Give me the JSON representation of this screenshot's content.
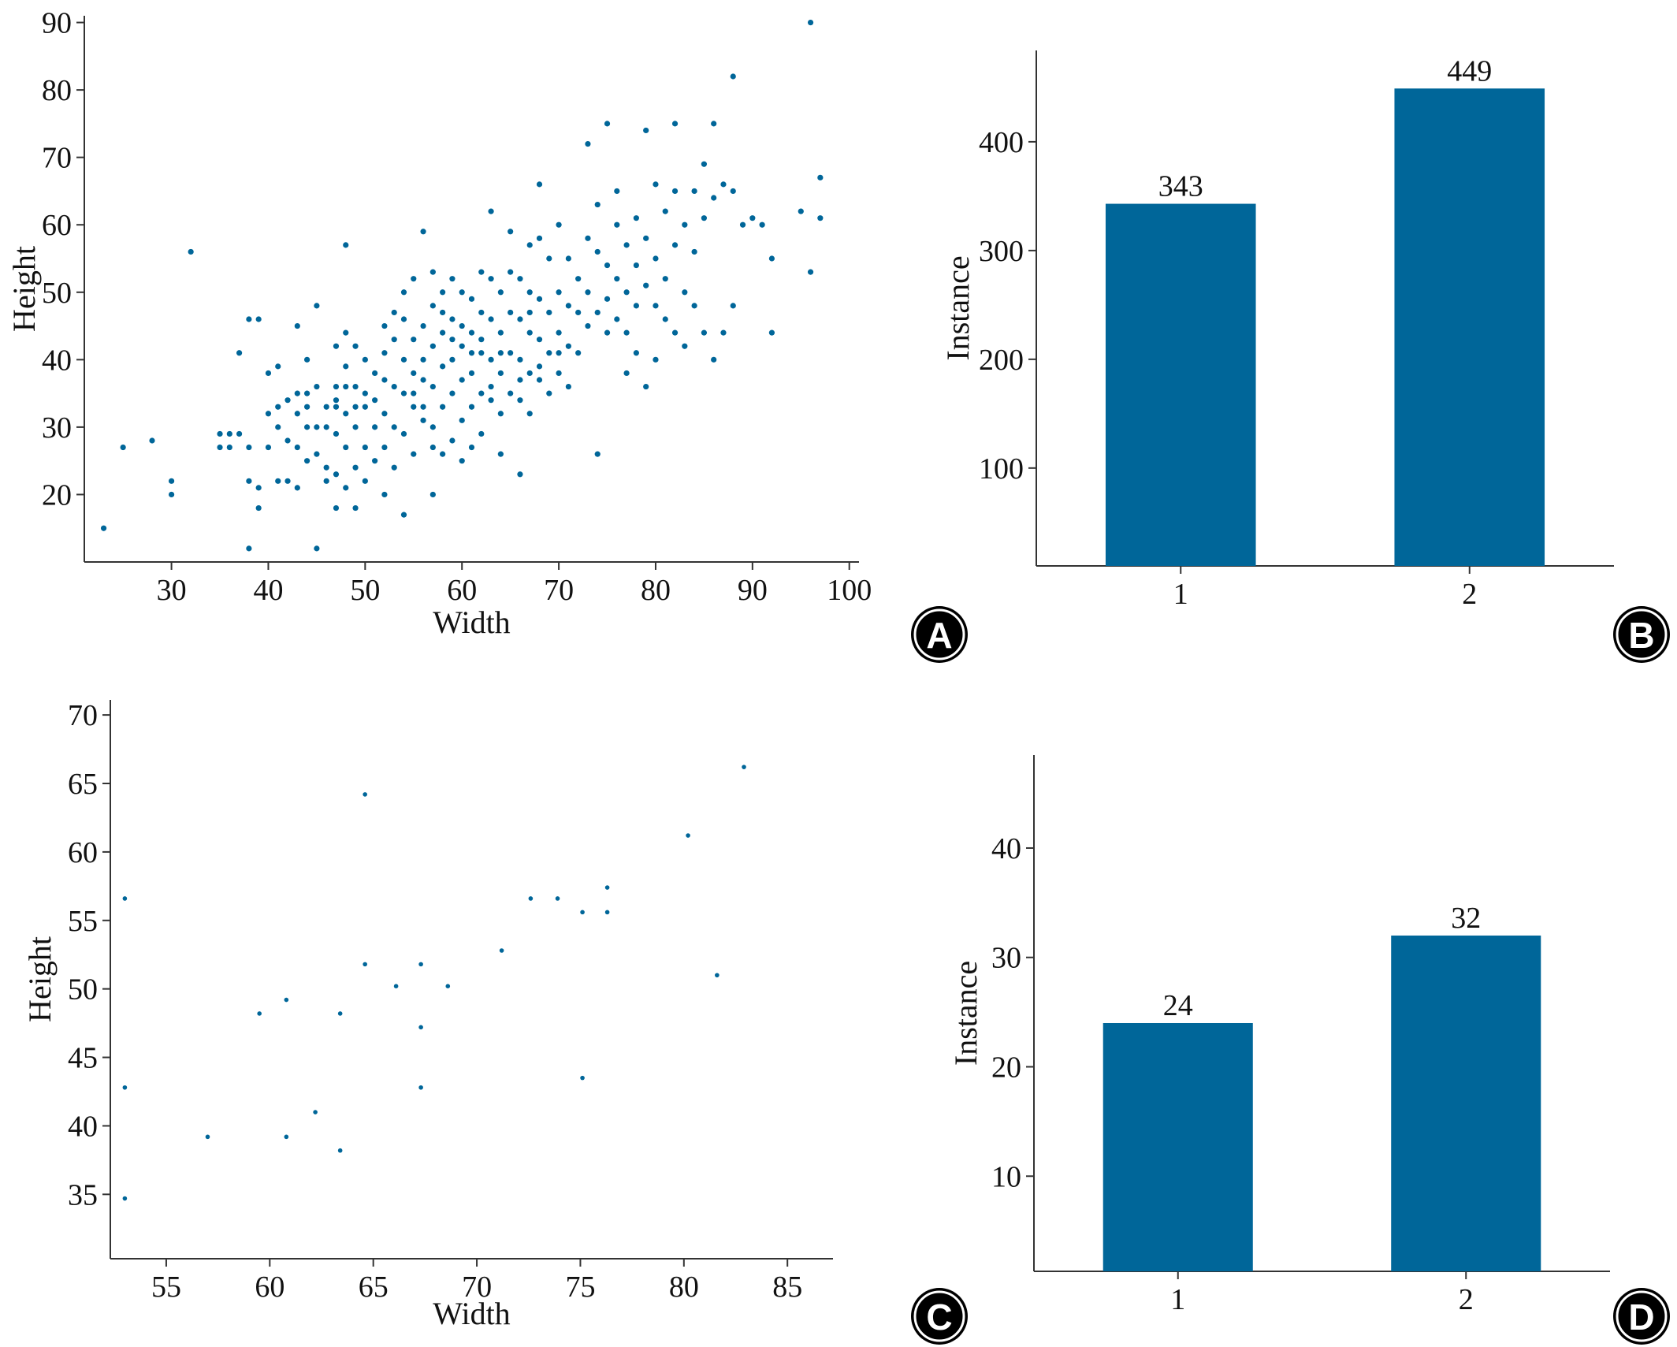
{
  "style": {
    "mark_color": "#006699",
    "axis_color": "#333333",
    "badge_color": "#000000"
  },
  "chart_data": [
    {
      "panel": "A",
      "type": "scatter",
      "xlabel": "Width",
      "ylabel": "Height",
      "xlim": [
        21,
        101
      ],
      "ylim": [
        10,
        91
      ],
      "xticks": [
        30,
        40,
        50,
        60,
        70,
        80,
        90,
        100
      ],
      "yticks": [
        20,
        30,
        40,
        50,
        60,
        70,
        80,
        90
      ],
      "grid": false,
      "points": [
        [
          23,
          15
        ],
        [
          25,
          27
        ],
        [
          28,
          28
        ],
        [
          30,
          22
        ],
        [
          30,
          20
        ],
        [
          32,
          56
        ],
        [
          35,
          29
        ],
        [
          35,
          27
        ],
        [
          36,
          29
        ],
        [
          36,
          27
        ],
        [
          37,
          29
        ],
        [
          37,
          41
        ],
        [
          38,
          27
        ],
        [
          38,
          22
        ],
        [
          38,
          12
        ],
        [
          38,
          46
        ],
        [
          39,
          46
        ],
        [
          39,
          18
        ],
        [
          39,
          21
        ],
        [
          40,
          32
        ],
        [
          40,
          38
        ],
        [
          40,
          27
        ],
        [
          41,
          33
        ],
        [
          41,
          39
        ],
        [
          41,
          30
        ],
        [
          41,
          22
        ],
        [
          42,
          34
        ],
        [
          42,
          28
        ],
        [
          42,
          22
        ],
        [
          43,
          35
        ],
        [
          43,
          32
        ],
        [
          43,
          27
        ],
        [
          43,
          21
        ],
        [
          43,
          45
        ],
        [
          44,
          25
        ],
        [
          44,
          33
        ],
        [
          44,
          30
        ],
        [
          44,
          40
        ],
        [
          44,
          35
        ],
        [
          45,
          48
        ],
        [
          45,
          36
        ],
        [
          45,
          30
        ],
        [
          45,
          26
        ],
        [
          45,
          12
        ],
        [
          46,
          33
        ],
        [
          46,
          24
        ],
        [
          46,
          22
        ],
        [
          46,
          30
        ],
        [
          47,
          42
        ],
        [
          47,
          36
        ],
        [
          47,
          33
        ],
        [
          47,
          29
        ],
        [
          47,
          23
        ],
        [
          47,
          18
        ],
        [
          48,
          44
        ],
        [
          48,
          39
        ],
        [
          48,
          36
        ],
        [
          48,
          32
        ],
        [
          48,
          27
        ],
        [
          48,
          21
        ],
        [
          48,
          57
        ],
        [
          49,
          42
        ],
        [
          49,
          36
        ],
        [
          49,
          30
        ],
        [
          49,
          24
        ],
        [
          49,
          18
        ],
        [
          50,
          40
        ],
        [
          50,
          35
        ],
        [
          50,
          33
        ],
        [
          50,
          27
        ],
        [
          50,
          22
        ],
        [
          51,
          38
        ],
        [
          51,
          34
        ],
        [
          51,
          30
        ],
        [
          51,
          25
        ],
        [
          52,
          45
        ],
        [
          52,
          41
        ],
        [
          52,
          37
        ],
        [
          52,
          32
        ],
        [
          52,
          20
        ],
        [
          53,
          43
        ],
        [
          53,
          36
        ],
        [
          53,
          30
        ],
        [
          53,
          24
        ],
        [
          54,
          50
        ],
        [
          54,
          46
        ],
        [
          54,
          40
        ],
        [
          54,
          35
        ],
        [
          54,
          29
        ],
        [
          54,
          17
        ],
        [
          55,
          52
        ],
        [
          55,
          43
        ],
        [
          55,
          38
        ],
        [
          55,
          33
        ],
        [
          55,
          26
        ],
        [
          56,
          45
        ],
        [
          56,
          40
        ],
        [
          56,
          37
        ],
        [
          56,
          31
        ],
        [
          56,
          59
        ],
        [
          57,
          53
        ],
        [
          57,
          48
        ],
        [
          57,
          42
        ],
        [
          57,
          36
        ],
        [
          57,
          27
        ],
        [
          57,
          20
        ],
        [
          58,
          50
        ],
        [
          58,
          44
        ],
        [
          58,
          39
        ],
        [
          58,
          33
        ],
        [
          58,
          26
        ],
        [
          59,
          52
        ],
        [
          59,
          46
        ],
        [
          59,
          40
        ],
        [
          59,
          35
        ],
        [
          59,
          28
        ],
        [
          60,
          45
        ],
        [
          60,
          42
        ],
        [
          60,
          37
        ],
        [
          60,
          31
        ],
        [
          60,
          25
        ],
        [
          61,
          49
        ],
        [
          61,
          44
        ],
        [
          61,
          38
        ],
        [
          61,
          33
        ],
        [
          61,
          27
        ],
        [
          62,
          53
        ],
        [
          62,
          47
        ],
        [
          62,
          41
        ],
        [
          62,
          35
        ],
        [
          62,
          29
        ],
        [
          63,
          52
        ],
        [
          63,
          46
        ],
        [
          63,
          40
        ],
        [
          63,
          34
        ],
        [
          63,
          62
        ],
        [
          64,
          50
        ],
        [
          64,
          44
        ],
        [
          64,
          38
        ],
        [
          64,
          32
        ],
        [
          64,
          26
        ],
        [
          65,
          53
        ],
        [
          65,
          47
        ],
        [
          65,
          41
        ],
        [
          65,
          35
        ],
        [
          65,
          59
        ],
        [
          66,
          52
        ],
        [
          66,
          46
        ],
        [
          66,
          40
        ],
        [
          66,
          34
        ],
        [
          66,
          23
        ],
        [
          67,
          57
        ],
        [
          67,
          50
        ],
        [
          67,
          44
        ],
        [
          67,
          38
        ],
        [
          67,
          32
        ],
        [
          68,
          58
        ],
        [
          68,
          49
        ],
        [
          68,
          43
        ],
        [
          68,
          37
        ],
        [
          68,
          66
        ],
        [
          69,
          55
        ],
        [
          69,
          47
        ],
        [
          69,
          41
        ],
        [
          69,
          35
        ],
        [
          70,
          60
        ],
        [
          70,
          50
        ],
        [
          70,
          44
        ],
        [
          70,
          38
        ],
        [
          71,
          55
        ],
        [
          71,
          48
        ],
        [
          71,
          42
        ],
        [
          71,
          36
        ],
        [
          72,
          52
        ],
        [
          72,
          47
        ],
        [
          72,
          41
        ],
        [
          73,
          58
        ],
        [
          73,
          50
        ],
        [
          73,
          45
        ],
        [
          73,
          72
        ],
        [
          74,
          56
        ],
        [
          74,
          47
        ],
        [
          74,
          26
        ],
        [
          74,
          63
        ],
        [
          75,
          54
        ],
        [
          75,
          49
        ],
        [
          75,
          44
        ],
        [
          75,
          75
        ],
        [
          76,
          60
        ],
        [
          76,
          52
        ],
        [
          76,
          46
        ],
        [
          76,
          65
        ],
        [
          77,
          57
        ],
        [
          77,
          50
        ],
        [
          77,
          44
        ],
        [
          77,
          38
        ],
        [
          78,
          61
        ],
        [
          78,
          54
        ],
        [
          78,
          48
        ],
        [
          78,
          41
        ],
        [
          79,
          58
        ],
        [
          79,
          51
        ],
        [
          79,
          36
        ],
        [
          79,
          74
        ],
        [
          80,
          66
        ],
        [
          80,
          55
        ],
        [
          80,
          48
        ],
        [
          80,
          40
        ],
        [
          81,
          62
        ],
        [
          81,
          52
        ],
        [
          81,
          46
        ],
        [
          82,
          65
        ],
        [
          82,
          57
        ],
        [
          82,
          44
        ],
        [
          82,
          75
        ],
        [
          83,
          60
        ],
        [
          83,
          50
        ],
        [
          83,
          42
        ],
        [
          84,
          65
        ],
        [
          84,
          56
        ],
        [
          84,
          48
        ],
        [
          85,
          69
        ],
        [
          85,
          61
        ],
        [
          85,
          44
        ],
        [
          86,
          75
        ],
        [
          86,
          64
        ],
        [
          86,
          40
        ],
        [
          87,
          66
        ],
        [
          87,
          44
        ],
        [
          88,
          65
        ],
        [
          88,
          48
        ],
        [
          88,
          82
        ],
        [
          89,
          60
        ],
        [
          90,
          61
        ],
        [
          91,
          60
        ],
        [
          92,
          55
        ],
        [
          92,
          44
        ],
        [
          95,
          62
        ],
        [
          96,
          90
        ],
        [
          96,
          53
        ],
        [
          97,
          67
        ],
        [
          97,
          61
        ],
        [
          68,
          39
        ],
        [
          66,
          37
        ],
        [
          62,
          43
        ],
        [
          58,
          47
        ],
        [
          53,
          47
        ],
        [
          57,
          30
        ],
        [
          52,
          27
        ],
        [
          60,
          50
        ],
        [
          64,
          41
        ],
        [
          55,
          35
        ],
        [
          49,
          33
        ],
        [
          47,
          34
        ],
        [
          70,
          41
        ],
        [
          61,
          41
        ],
        [
          59,
          43
        ],
        [
          63,
          36
        ],
        [
          67,
          47
        ],
        [
          56,
          33
        ]
      ]
    },
    {
      "panel": "B",
      "type": "bar",
      "xlabel": "",
      "ylabel": "Instance",
      "categories": [
        "1",
        "2"
      ],
      "values": [
        343,
        449
      ],
      "data_labels": [
        "343",
        "449"
      ],
      "ylim": [
        10,
        484
      ],
      "yticks": [
        100,
        200,
        300,
        400
      ],
      "grid": false
    },
    {
      "panel": "C",
      "type": "scatter",
      "xlabel": "Width",
      "ylabel": "Height",
      "xlim": [
        52.3,
        87.2
      ],
      "ylim": [
        30.3,
        71.1
      ],
      "xticks": [
        55,
        60,
        65,
        70,
        75,
        80,
        85
      ],
      "yticks": [
        35,
        40,
        45,
        50,
        55,
        60,
        65,
        70
      ],
      "grid": false,
      "points": [
        [
          53,
          56.6
        ],
        [
          53,
          42.8
        ],
        [
          53,
          34.7
        ],
        [
          57,
          39.2
        ],
        [
          59.5,
          48.2
        ],
        [
          60.8,
          49.2
        ],
        [
          60.8,
          39.2
        ],
        [
          62.2,
          41
        ],
        [
          63.4,
          38.2
        ],
        [
          63.4,
          48.2
        ],
        [
          64.6,
          51.8
        ],
        [
          64.6,
          64.2
        ],
        [
          66.1,
          50.2
        ],
        [
          67.3,
          51.8
        ],
        [
          67.3,
          47.2
        ],
        [
          67.3,
          42.8
        ],
        [
          68.6,
          50.2
        ],
        [
          71.2,
          52.8
        ],
        [
          72.6,
          56.6
        ],
        [
          73.9,
          56.6
        ],
        [
          75.1,
          55.6
        ],
        [
          75.1,
          43.5
        ],
        [
          76.3,
          57.4
        ],
        [
          76.3,
          55.6
        ],
        [
          80.2,
          61.2
        ],
        [
          81.6,
          51
        ],
        [
          82.9,
          66.2
        ]
      ]
    },
    {
      "panel": "D",
      "type": "bar",
      "xlabel": "",
      "ylabel": "Instance",
      "categories": [
        "1",
        "2"
      ],
      "values": [
        24,
        32
      ],
      "data_labels": [
        "24",
        "32"
      ],
      "ylim": [
        1.3,
        48.5
      ],
      "yticks": [
        10,
        20,
        30,
        40
      ],
      "grid": false
    }
  ],
  "panels": [
    "A",
    "B",
    "C",
    "D"
  ]
}
